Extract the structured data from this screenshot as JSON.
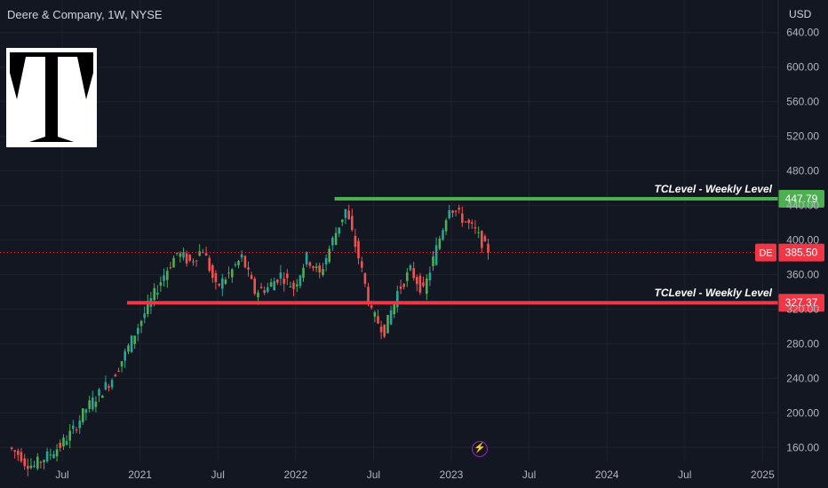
{
  "header": {
    "symbol_title": "Deere & Company, 1W, NYSE"
  },
  "axis": {
    "currency": "USD",
    "y_ticks": [
      "640.00",
      "600.00",
      "560.00",
      "520.00",
      "480.00",
      "440.00",
      "400.00",
      "360.00",
      "320.00",
      "280.00",
      "240.00",
      "200.00",
      "160.00"
    ],
    "x_ticks": [
      "Jul",
      "2021",
      "Jul",
      "2022",
      "Jul",
      "2023",
      "Jul",
      "2024",
      "Jul",
      "2025"
    ]
  },
  "levels": {
    "resistance": {
      "label": "TCLevel - Weekly Level",
      "value": "447.79",
      "color": "#4caf50"
    },
    "support": {
      "label": "TCLevel - Weekly Level",
      "value": "327.37",
      "color": "#f23645"
    }
  },
  "last_price": {
    "symbol": "DE",
    "value": "385.50",
    "color": "#f23645"
  },
  "colors": {
    "up": "#26a69a",
    "up_alt": "#4caf50",
    "down": "#ef5350",
    "background": "#131722",
    "grid": "#1e222d",
    "text": "#b2b5be"
  },
  "icons": {
    "logo": "tc-logo-icon",
    "flash": "lightning-icon"
  },
  "chart_data": {
    "type": "candlestick",
    "title": "Deere & Company, 1W, NYSE",
    "ylabel": "USD",
    "ylim": [
      130,
      660
    ],
    "xlim": [
      "2020-03",
      "2025-01"
    ],
    "x_ticks": [
      "Jul",
      "2021",
      "Jul",
      "2022",
      "Jul",
      "2023",
      "Jul",
      "2024",
      "Jul",
      "2025"
    ],
    "horizontal_levels": [
      {
        "name": "TCLevel - Weekly Level",
        "value": 447.79,
        "start": "2022-04"
      },
      {
        "name": "TCLevel - Weekly Level",
        "value": 327.37,
        "start": "2020-12"
      }
    ],
    "last_price": 385.5,
    "series": [
      {
        "name": "DE",
        "points": [
          [
            "2020-03",
            160,
            150
          ],
          [
            "2020-04",
            145,
            138
          ],
          [
            "2020-05",
            140,
            150
          ],
          [
            "2020-06",
            150,
            162
          ],
          [
            "2020-07",
            162,
            180
          ],
          [
            "2020-08",
            180,
            205
          ],
          [
            "2020-09",
            205,
            222
          ],
          [
            "2020-10",
            222,
            240
          ],
          [
            "2020-11",
            240,
            268
          ],
          [
            "2020-12",
            268,
            300
          ],
          [
            "2021-01",
            300,
            330
          ],
          [
            "2021-02",
            330,
            360
          ],
          [
            "2021-03",
            360,
            385
          ],
          [
            "2021-04",
            385,
            375
          ],
          [
            "2021-05",
            375,
            390
          ],
          [
            "2021-06",
            390,
            345
          ],
          [
            "2021-07",
            345,
            360
          ],
          [
            "2021-08",
            360,
            380
          ],
          [
            "2021-09",
            380,
            340
          ],
          [
            "2021-10",
            340,
            345
          ],
          [
            "2021-11",
            345,
            360
          ],
          [
            "2021-12",
            360,
            345
          ],
          [
            "2022-01",
            345,
            380
          ],
          [
            "2022-02",
            380,
            360
          ],
          [
            "2022-03",
            360,
            400
          ],
          [
            "2022-04",
            400,
            435
          ],
          [
            "2022-05",
            435,
            380
          ],
          [
            "2022-06",
            380,
            315
          ],
          [
            "2022-07",
            315,
            295
          ],
          [
            "2022-08",
            295,
            340
          ],
          [
            "2022-09",
            340,
            365
          ],
          [
            "2022-10",
            365,
            340
          ],
          [
            "2022-11",
            340,
            390
          ],
          [
            "2022-12",
            390,
            440
          ],
          [
            "2023-01",
            440,
            425
          ],
          [
            "2023-02",
            425,
            410
          ],
          [
            "2023-03",
            410,
            385.5
          ]
        ]
      }
    ]
  }
}
